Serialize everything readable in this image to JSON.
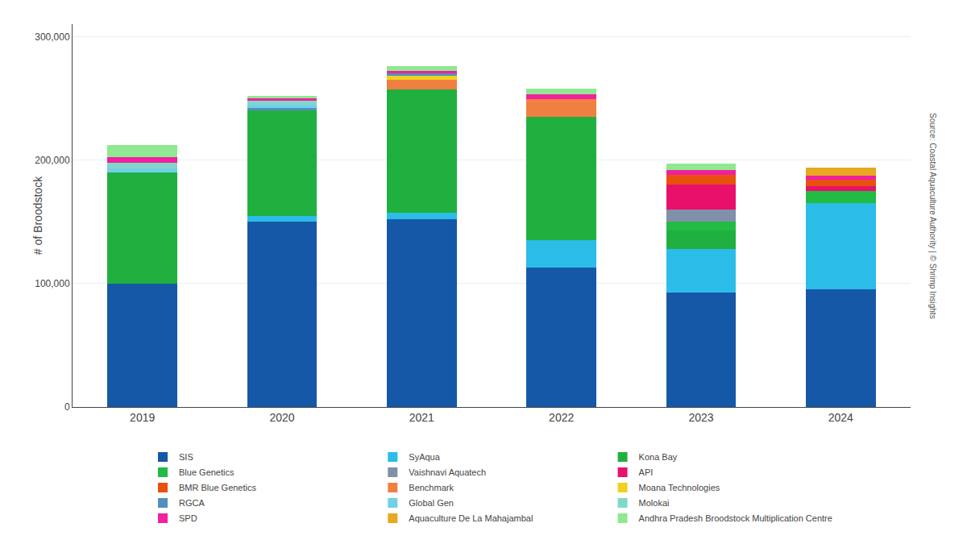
{
  "chart_data": {
    "type": "bar",
    "stacked": true,
    "grid": true,
    "legend": "bottom",
    "categories": [
      "2019",
      "2020",
      "2021",
      "2022",
      "2023",
      "2024"
    ],
    "y_label": "# of Broodstock",
    "ylim": [
      0,
      310000
    ],
    "yticks": [
      0,
      {
        "value": 100000,
        "label": "100,000"
      },
      {
        "value": 200000,
        "label": "200,000"
      },
      {
        "value": 300000,
        "label": "300,000"
      }
    ],
    "annotations": [
      "Source: Coastal Aquaculture Authority | © Shrimp Insights"
    ],
    "series": [
      {
        "name": "SIS",
        "color": "#1558A8",
        "values": [
          100000,
          150000,
          152000,
          113000,
          93000,
          95000
        ]
      },
      {
        "name": "SyAqua",
        "color": "#2BBDE8",
        "values": [
          0,
          5000,
          5000,
          22000,
          35000,
          70000
        ]
      },
      {
        "name": "Kona Bay",
        "color": "#20B040",
        "values": [
          90000,
          85000,
          100000,
          100000,
          15000,
          0
        ]
      },
      {
        "name": "Blue Genetics",
        "color": "#22BB44",
        "values": [
          0,
          0,
          0,
          0,
          7000,
          10000
        ]
      },
      {
        "name": "Vaishnavi Aquatech",
        "color": "#8090A8",
        "values": [
          0,
          0,
          0,
          0,
          10000,
          0
        ]
      },
      {
        "name": "API",
        "color": "#E8106A",
        "values": [
          0,
          0,
          0,
          0,
          20000,
          4000
        ]
      },
      {
        "name": "BMR Blue Genetics",
        "color": "#E85010",
        "values": [
          0,
          0,
          0,
          0,
          8000,
          5000
        ]
      },
      {
        "name": "Benchmark",
        "color": "#F08040",
        "values": [
          0,
          0,
          8000,
          14000,
          0,
          0
        ]
      },
      {
        "name": "Moana Technologies",
        "color": "#F0D020",
        "values": [
          0,
          0,
          3000,
          0,
          0,
          0
        ]
      },
      {
        "name": "RGCA",
        "color": "#5090C0",
        "values": [
          0,
          2000,
          2000,
          0,
          0,
          0
        ]
      },
      {
        "name": "Global Gen",
        "color": "#70D0E8",
        "values": [
          3000,
          3000,
          0,
          0,
          0,
          0
        ]
      },
      {
        "name": "Molokai",
        "color": "#80D8C8",
        "values": [
          5000,
          3000,
          0,
          0,
          0,
          0
        ]
      },
      {
        "name": "SPD",
        "color": "#F020A0",
        "values": [
          4000,
          2000,
          2000,
          4000,
          4000,
          3000
        ]
      },
      {
        "name": "Aquaculture De La Mahajambal",
        "color": "#E8A820",
        "values": [
          0,
          0,
          0,
          0,
          0,
          7000
        ]
      },
      {
        "name": "Andhra Pradesh Broodstock Multiplication Centre",
        "color": "#90E890",
        "values": [
          10000,
          2000,
          4000,
          5000,
          5000,
          0
        ]
      }
    ]
  }
}
